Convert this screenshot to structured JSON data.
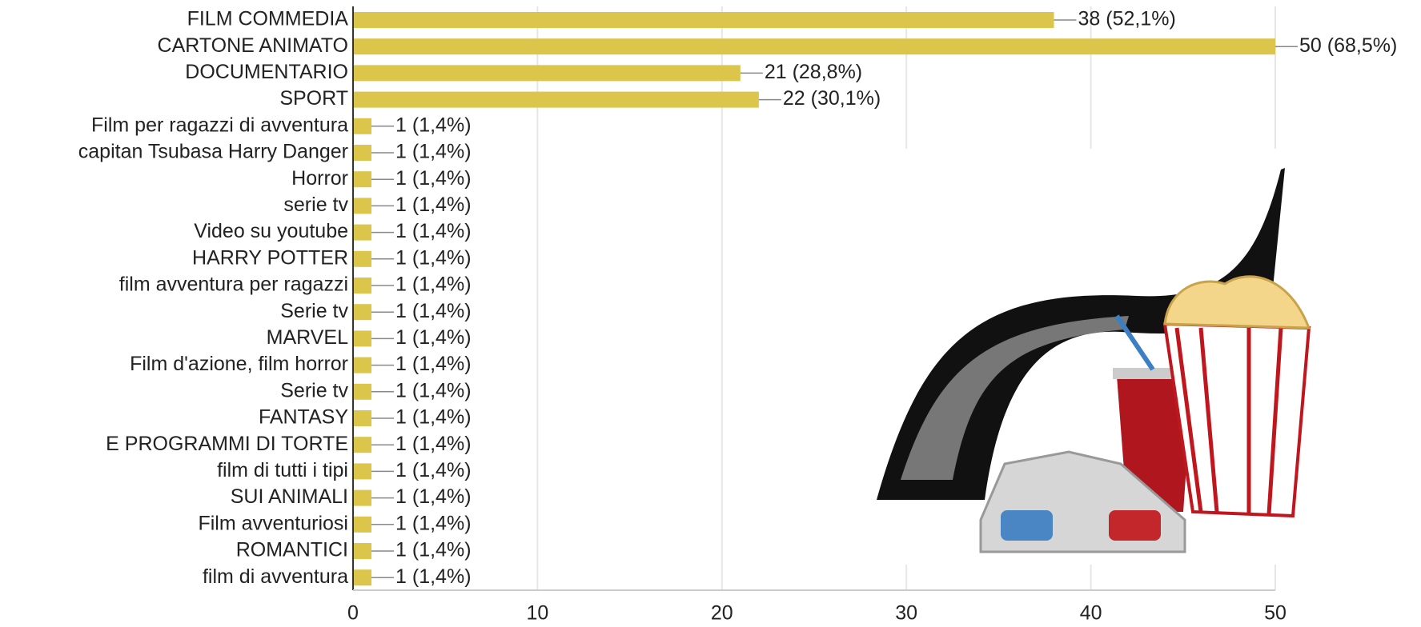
{
  "chart_data": {
    "type": "bar",
    "orientation": "horizontal",
    "categories": [
      "FILM COMMEDIA",
      "CARTONE ANIMATO",
      "DOCUMENTARIO",
      "SPORT",
      "Film per ragazzi di avventura",
      "capitan Tsubasa Harry Danger",
      "Horror",
      "serie tv",
      "Video su youtube",
      "HARRY POTTER",
      "film avventura per ragazzi",
      "Serie tv",
      "MARVEL",
      "Film d'azione, film horror",
      "Serie tv",
      "FANTASY",
      "E PROGRAMMI DI TORTE",
      "film di tutti i tipi",
      "SUI ANIMALI",
      "Film avventuriosi",
      "ROMANTICI",
      "film di avventura"
    ],
    "values": [
      38,
      50,
      21,
      22,
      1,
      1,
      1,
      1,
      1,
      1,
      1,
      1,
      1,
      1,
      1,
      1,
      1,
      1,
      1,
      1,
      1,
      1
    ],
    "value_labels": [
      "38 (52,1%)",
      "50 (68,5%)",
      "21 (28,8%)",
      "22 (30,1%)",
      "1 (1,4%)",
      "1 (1,4%)",
      "1 (1,4%)",
      "1 (1,4%)",
      "1 (1,4%)",
      "1 (1,4%)",
      "1 (1,4%)",
      "1 (1,4%)",
      "1 (1,4%)",
      "1 (1,4%)",
      "1 (1,4%)",
      "1 (1,4%)",
      "1 (1,4%)",
      "1 (1,4%)",
      "1 (1,4%)",
      "1 (1,4%)",
      "1 (1,4%)",
      "1 (1,4%)"
    ],
    "color": "#dbc54a",
    "xlim": [
      0,
      50
    ],
    "xticks": [
      0,
      10,
      20,
      30,
      40,
      50
    ],
    "grid": true
  }
}
